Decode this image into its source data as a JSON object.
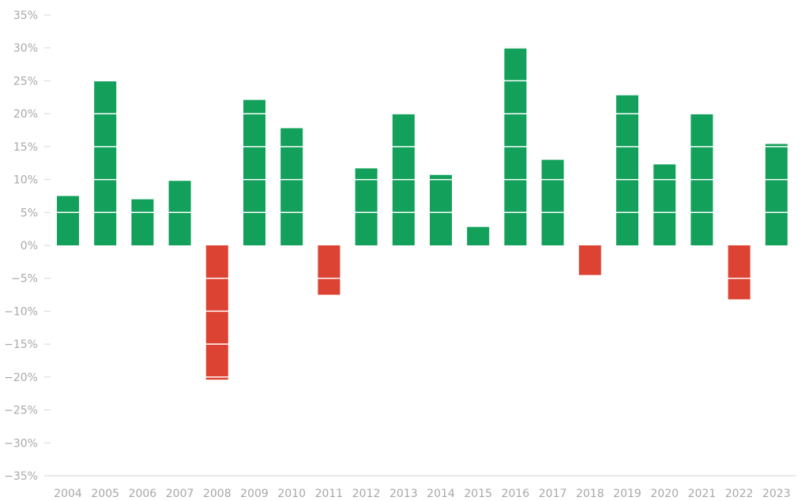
{
  "chart_data": {
    "type": "bar",
    "categories": [
      "2004",
      "2005",
      "2006",
      "2007",
      "2008",
      "2009",
      "2010",
      "2011",
      "2012",
      "2013",
      "2014",
      "2015",
      "2016",
      "2017",
      "2018",
      "2019",
      "2020",
      "2021",
      "2022",
      "2023"
    ],
    "values": [
      7.5,
      25.0,
      7.0,
      9.8,
      -20.4,
      22.1,
      17.8,
      -7.5,
      11.7,
      20.0,
      10.7,
      2.8,
      30.1,
      13.0,
      -4.5,
      22.8,
      12.3,
      20.0,
      -8.2,
      15.4
    ],
    "yticks": [
      35,
      30,
      25,
      20,
      15,
      10,
      5,
      0,
      -5,
      -10,
      -15,
      -20,
      -25,
      -30,
      -35
    ],
    "ytick_labels": [
      "35%",
      "30%",
      "25%",
      "20%",
      "15%",
      "10%",
      "5%",
      "0%",
      "−5%",
      "−10%",
      "−15%",
      "−20%",
      "−25%",
      "−30%",
      "−35%"
    ],
    "ylim": [
      -35,
      35
    ],
    "title": "",
    "xlabel": "",
    "ylabel": "",
    "grid": true,
    "colors": {
      "positive": "#12a05a",
      "negative": "#dd4332",
      "grid": "#ffffff",
      "axis": "#d6d6d6",
      "text": "#a8a8a8"
    }
  }
}
